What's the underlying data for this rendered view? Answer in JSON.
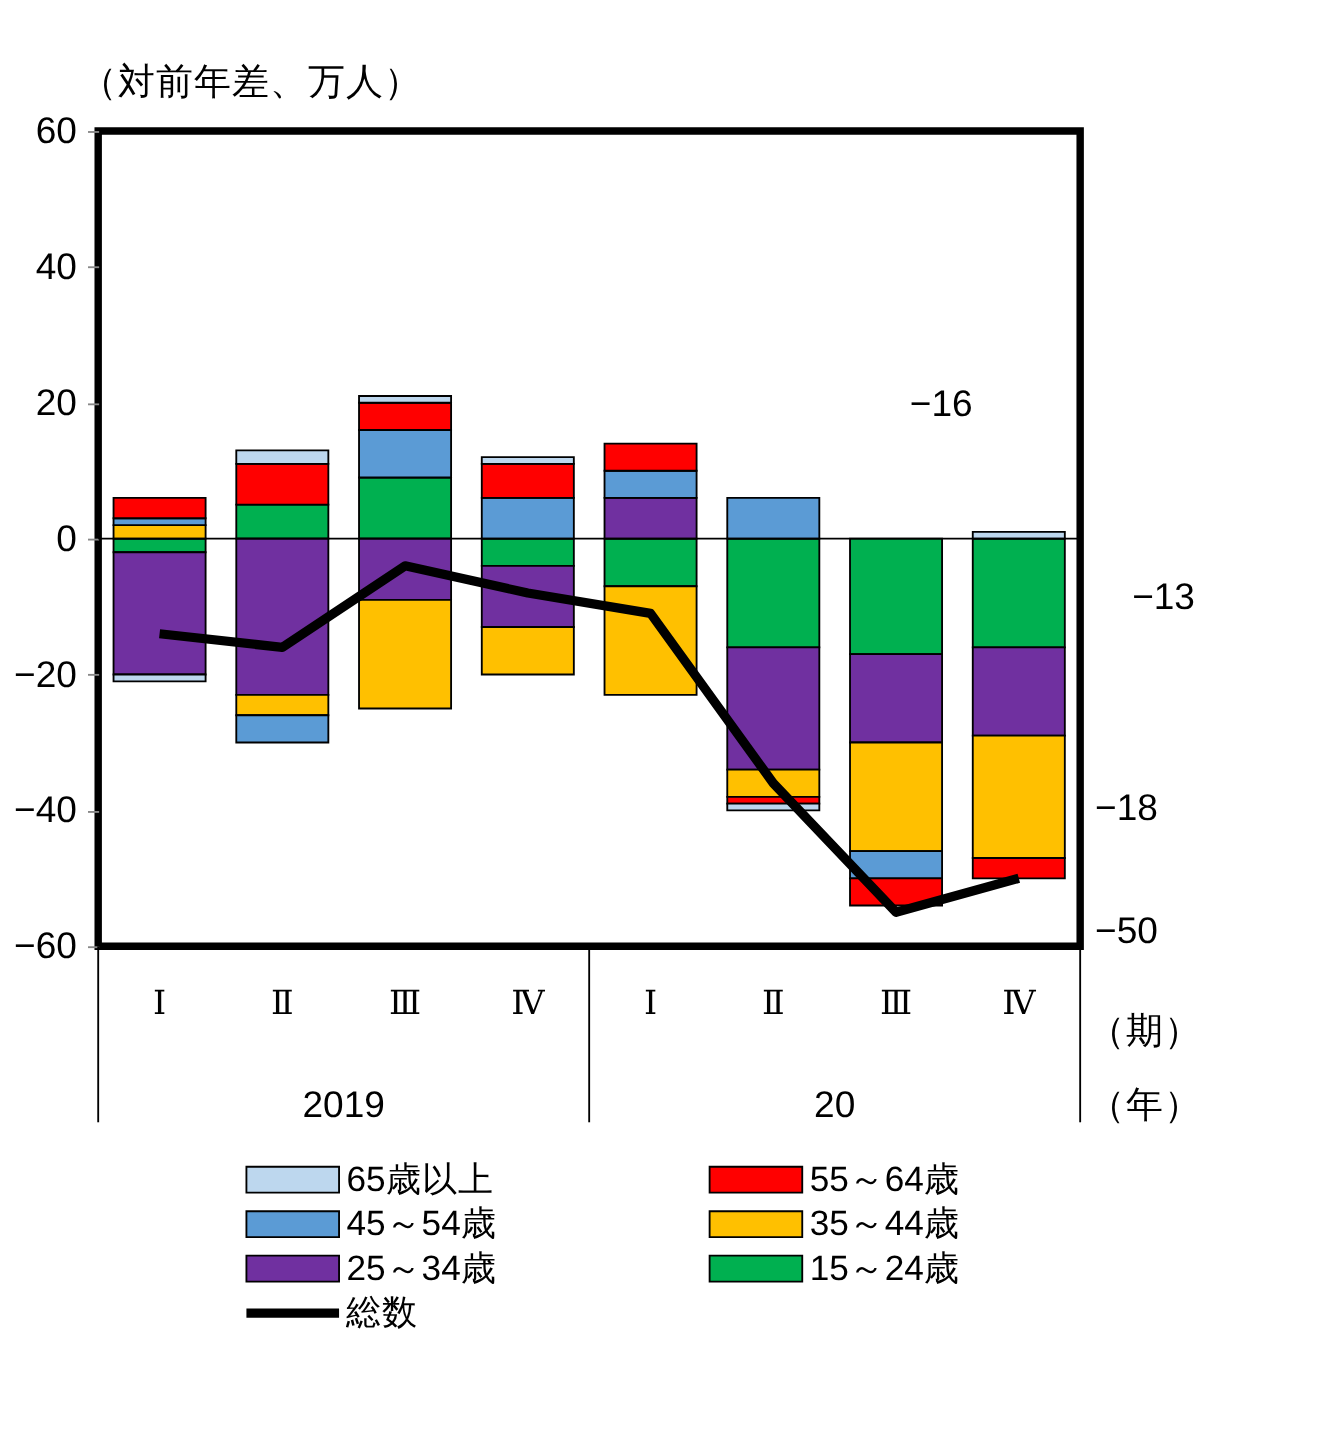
{
  "chart_data": {
    "type": "bar",
    "stacked": true,
    "ylabel": "（対前年差、万人）",
    "categories": [
      "Ⅰ",
      "Ⅱ",
      "Ⅲ",
      "Ⅳ",
      "Ⅰ",
      "Ⅱ",
      "Ⅲ",
      "Ⅳ"
    ],
    "ylim": [
      -60,
      60
    ],
    "yticks": [
      -60,
      -40,
      -20,
      0,
      20,
      40,
      60
    ],
    "grid": false,
    "legend": "bottom",
    "ref_lines": [
      {
        "axis": "y",
        "value": 0,
        "color": "#000000"
      }
    ],
    "series": [
      {
        "name": "15～24歳",
        "color": "#00b050",
        "values": [
          -2,
          5,
          9,
          -4,
          -7,
          -16,
          -17,
          -16
        ]
      },
      {
        "name": "25～34歳",
        "color": "#7030a0",
        "values": [
          -18,
          -23,
          -9,
          -9,
          6,
          -18,
          -13,
          -13
        ]
      },
      {
        "name": "35～44歳",
        "color": "#ffc000",
        "values": [
          2,
          -3,
          -16,
          -7,
          -16,
          -4,
          -16,
          -18
        ]
      },
      {
        "name": "45～54歳",
        "color": "#5b9bd5",
        "values": [
          1,
          -4,
          7,
          6,
          4,
          6,
          -4,
          null
        ]
      },
      {
        "name": "55～64歳",
        "color": "#ff0000",
        "values": [
          3,
          6,
          4,
          5,
          4,
          -1,
          -4,
          -3
        ]
      },
      {
        "name": "65歳以上",
        "color": "#bdd7ee",
        "values": [
          -1,
          2,
          1,
          1,
          null,
          -1,
          null,
          1
        ]
      },
      {
        "name": "総数",
        "type": "line",
        "color": "#000000",
        "values": [
          -14,
          -16,
          -4,
          -8,
          -11,
          -36,
          -55,
          -50
        ]
      }
    ],
    "annotations": [
      "−16",
      "−13",
      "−18",
      "−50",
      "（期）",
      "（年）",
      "2019",
      "20"
    ]
  }
}
